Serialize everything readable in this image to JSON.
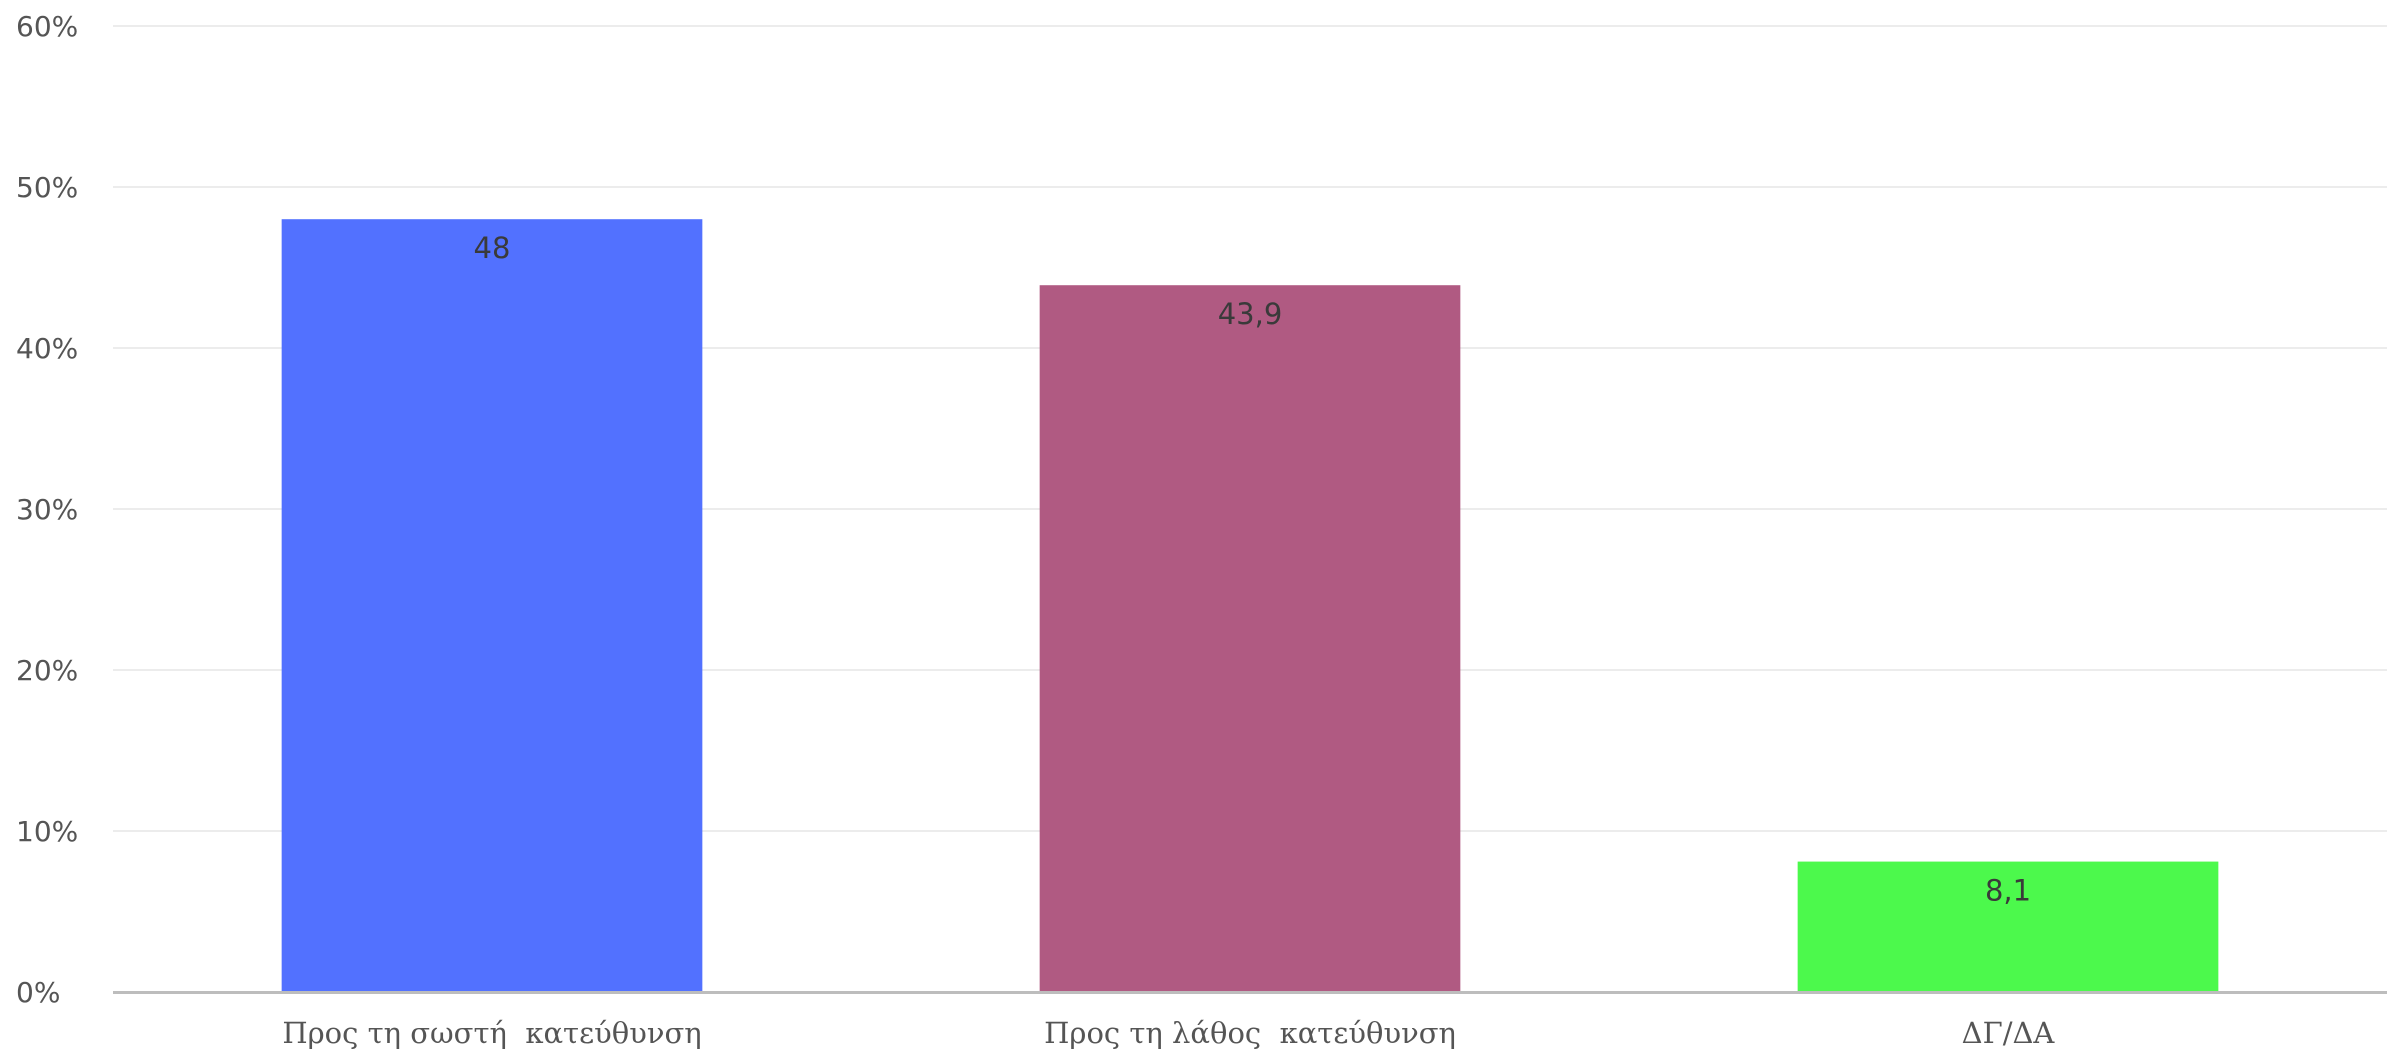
{
  "chart_data": {
    "type": "bar",
    "categories": [
      "Προς τη σωστή  κατεύθυνση",
      "Προς τη λάθος  κατεύθυνση",
      "ΔΓ/ΔΑ"
    ],
    "values": [
      48,
      43.9,
      8.1
    ],
    "data_labels": [
      "48",
      "43,9",
      "8,1"
    ],
    "colors": [
      "#5271ff",
      "#b05a82",
      "#4cf94c"
    ],
    "ylim": [
      0,
      60
    ],
    "yticks": [
      0,
      10,
      20,
      30,
      40,
      50,
      60
    ],
    "ytick_labels": [
      "0%",
      "10%",
      "20%",
      "30%",
      "40%",
      "50%",
      "60%"
    ],
    "title": "",
    "xlabel": "",
    "ylabel": "",
    "grid": true,
    "legend": false
  }
}
